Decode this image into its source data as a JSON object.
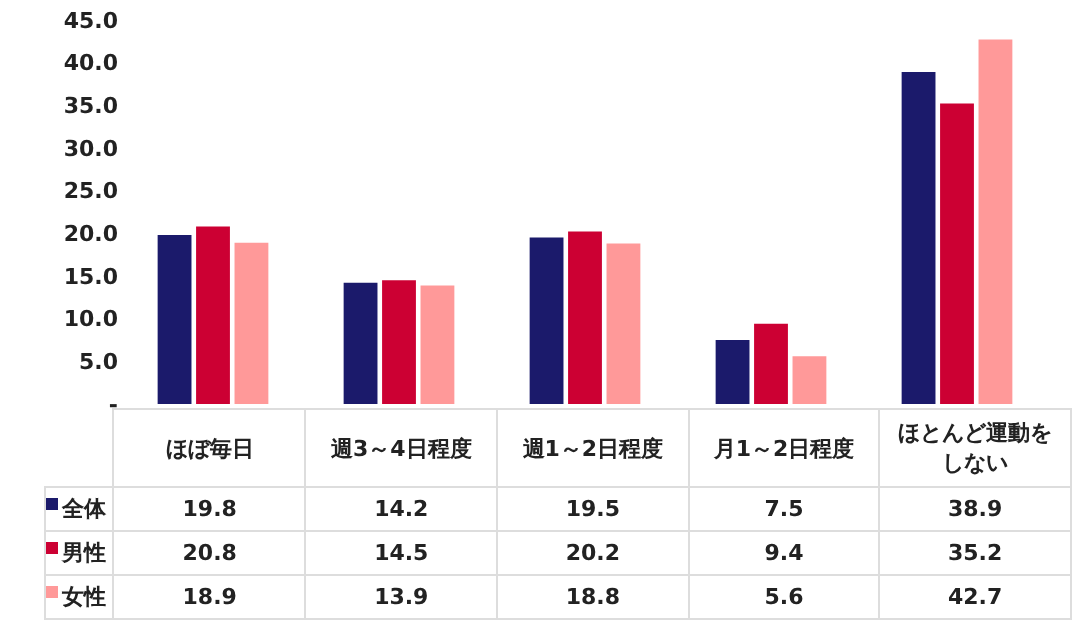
{
  "chart_data": {
    "type": "bar",
    "categories": [
      "ほぼ毎日",
      "週3～4日程度",
      "週1～2日程度",
      "月1～2日程度",
      "ほとんど運動をしない"
    ],
    "series": [
      {
        "name": "全体",
        "color": "#1b1a6b",
        "values": [
          19.8,
          14.2,
          19.5,
          7.5,
          38.9
        ]
      },
      {
        "name": "男性",
        "color": "#cc0033",
        "values": [
          20.8,
          14.5,
          20.2,
          9.4,
          35.2
        ]
      },
      {
        "name": "女性",
        "color": "#ff9999",
        "values": [
          18.9,
          13.9,
          18.8,
          5.6,
          42.7
        ]
      }
    ],
    "ylim": [
      0,
      45
    ],
    "yticks": [
      {
        "value": 0,
        "label": "-"
      },
      {
        "value": 5,
        "label": "5.0"
      },
      {
        "value": 10,
        "label": "10.0"
      },
      {
        "value": 15,
        "label": "15.0"
      },
      {
        "value": 20,
        "label": "20.0"
      },
      {
        "value": 25,
        "label": "25.0"
      },
      {
        "value": 30,
        "label": "30.0"
      },
      {
        "value": 35,
        "label": "35.0"
      },
      {
        "value": 40,
        "label": "40.0"
      },
      {
        "value": 45,
        "label": "45.0"
      }
    ],
    "grid": false,
    "data_labels": true,
    "legend": "bottom left"
  }
}
